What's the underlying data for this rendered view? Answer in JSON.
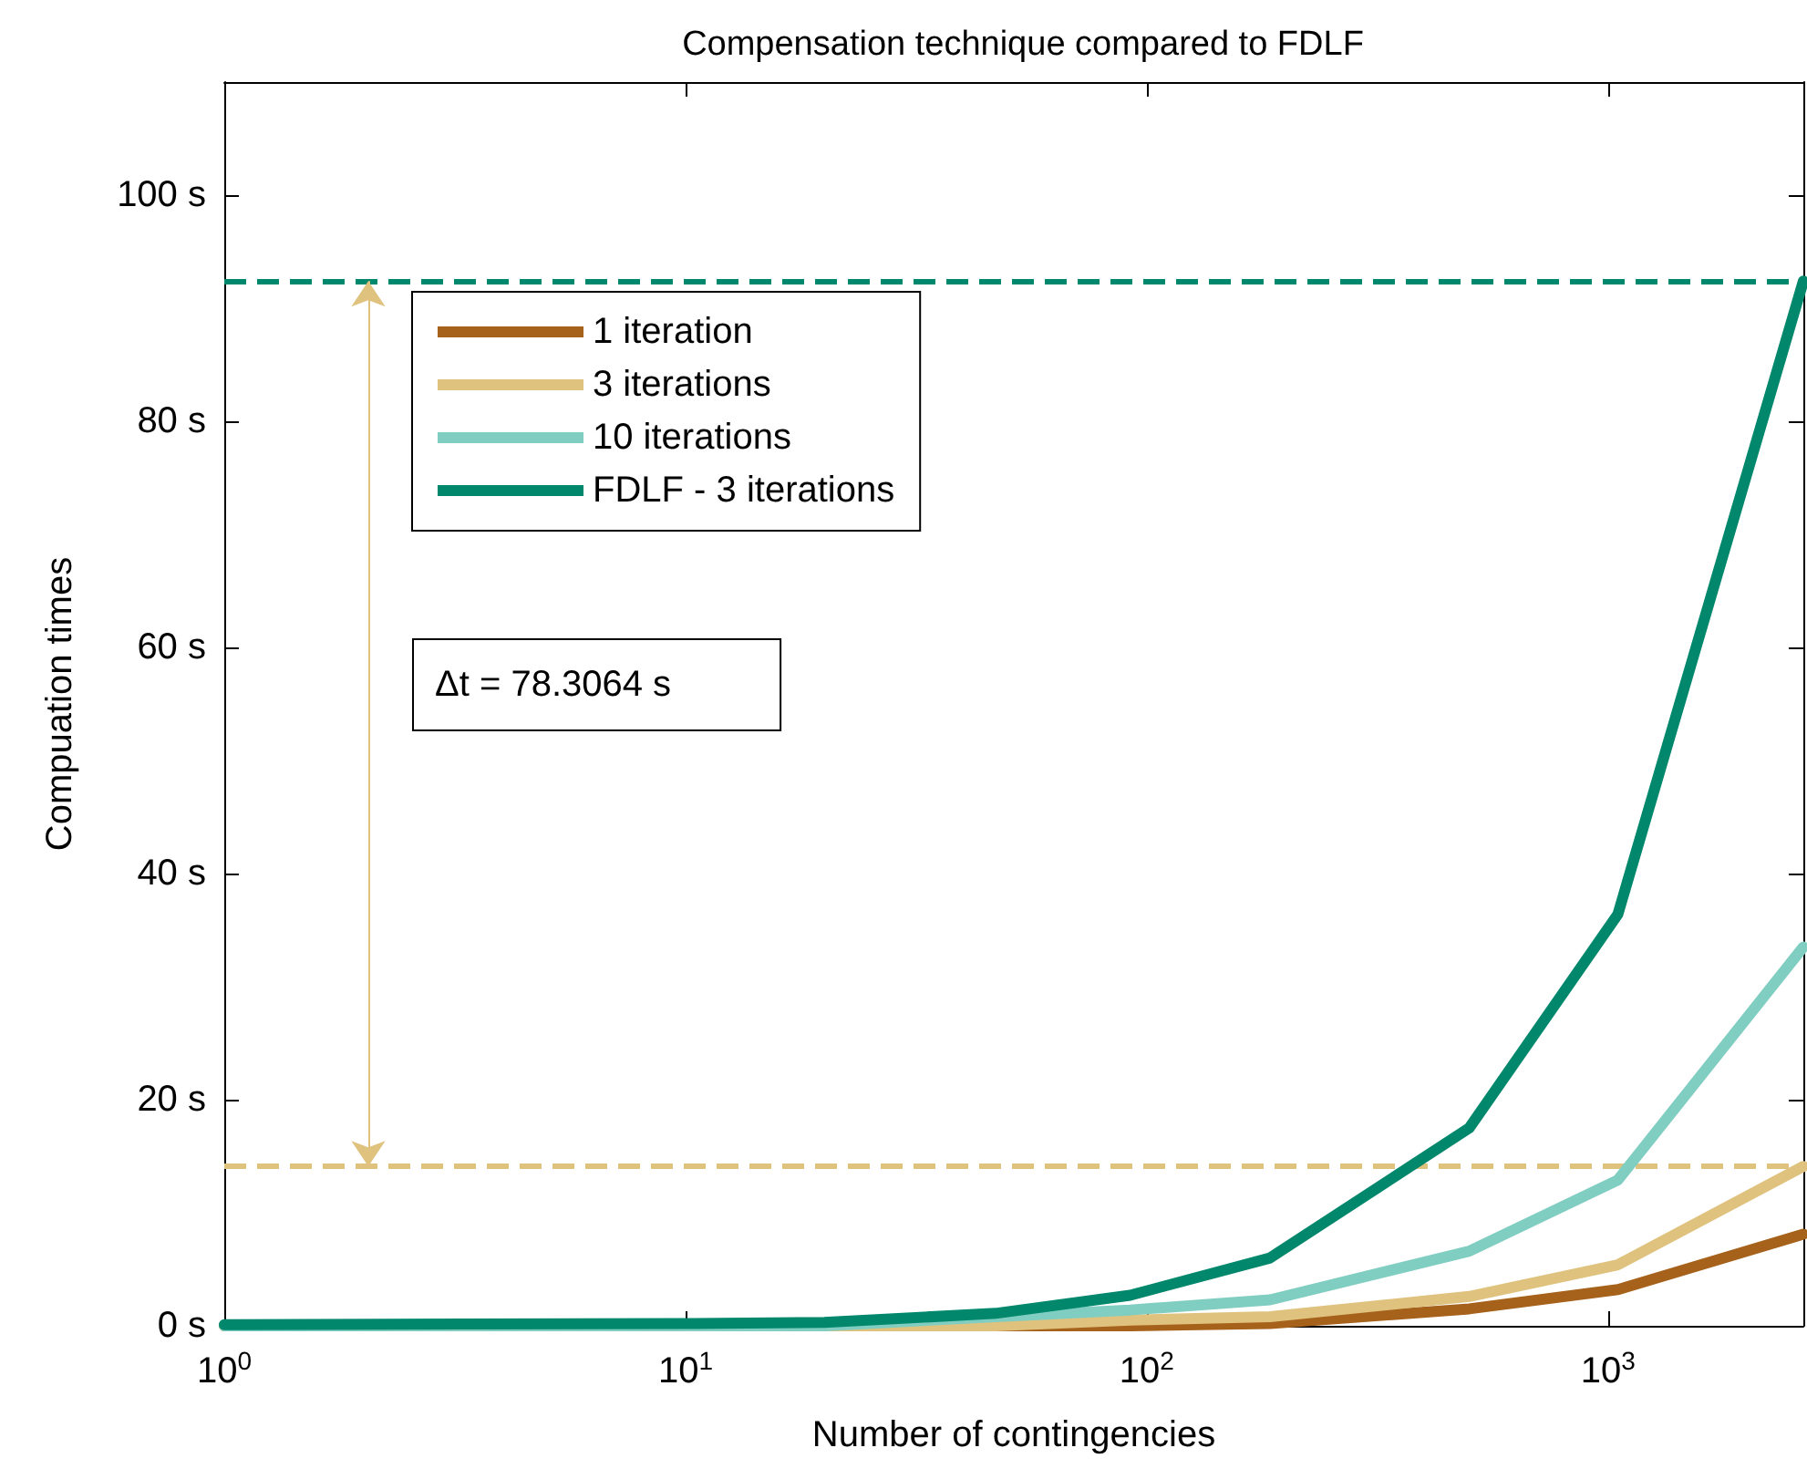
{
  "chart_data": {
    "type": "line",
    "title": "Compensation technique compared to FDLF",
    "xlabel": "Number of contingencies",
    "ylabel": "Compuation times",
    "x": [
      1,
      10,
      20,
      47,
      92,
      185,
      500,
      1050,
      2650
    ],
    "series": [
      {
        "name": "1 iteration",
        "color": "#a6611a",
        "values": [
          0,
          0,
          0,
          0,
          0,
          0.2,
          1.5,
          3.2,
          8.1
        ]
      },
      {
        "name": "3 iterations",
        "color": "#dfc27d",
        "values": [
          0,
          0,
          0,
          0,
          0.5,
          0.8,
          2.6,
          5.4,
          14.1
        ]
      },
      {
        "name": "10 iterations",
        "color": "#80cdc1",
        "values": [
          0,
          0,
          0,
          0.8,
          1.4,
          2.3,
          6.6,
          12.9,
          33.5
        ]
      },
      {
        "name": "FDLF - 3 iterations",
        "color": "#01876c",
        "values": [
          0.1,
          0.2,
          0.3,
          1.1,
          2.7,
          6.0,
          17.5,
          36.4,
          92.4
        ]
      }
    ],
    "log": "x",
    "xlim": [
      1,
      2650
    ],
    "xticks": [
      {
        "value": 1,
        "label": "10$^{0}$"
      },
      {
        "value": 10,
        "label": "10$^{1}$"
      },
      {
        "value": 100,
        "label": "10$^{2}$"
      },
      {
        "value": 1000,
        "label": "10$^{3}$"
      }
    ],
    "ylim": [
      0,
      110
    ],
    "yticks": [
      {
        "value": 0,
        "label": "0 s"
      },
      {
        "value": 20,
        "label": "20 s"
      },
      {
        "value": 40,
        "label": "40 s"
      },
      {
        "value": 60,
        "label": "60 s"
      },
      {
        "value": 80,
        "label": "80 s"
      },
      {
        "value": 100,
        "label": "100 s"
      }
    ],
    "ref_lines": [
      {
        "axis": "y",
        "value": 92.4,
        "color": "#01876c",
        "line_style": "dashed"
      },
      {
        "axis": "y",
        "value": 14.1,
        "color": "#dfc27d",
        "line_style": "dashed"
      }
    ],
    "annotations": [
      "Δt = 78.3064 s"
    ],
    "legend": "top left",
    "grid": false,
    "line_style": "solid",
    "marker": "none"
  }
}
